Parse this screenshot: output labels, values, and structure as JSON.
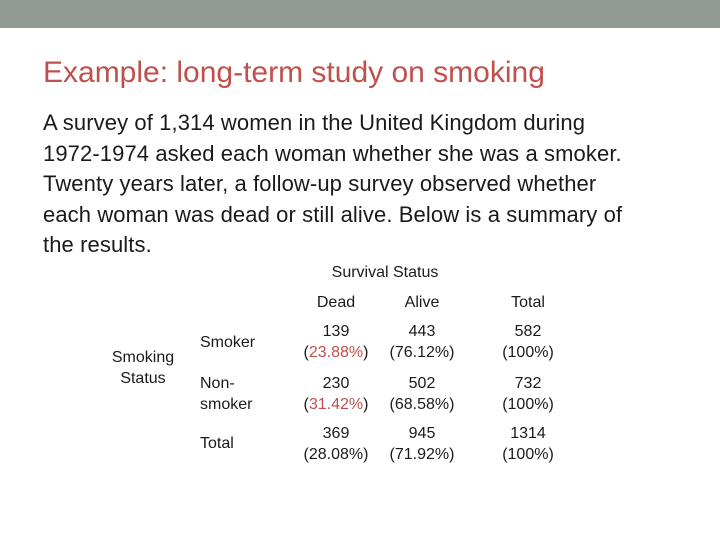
{
  "slide": {
    "title": "Example: long-term study on smoking",
    "body_lines": [
      "A survey of 1,314 women in the United Kingdom during",
      "1972-1974 asked each woman whether she was a smoker.",
      "Twenty years later, a follow-up survey observed whether",
      "each woman was dead or still alive. Below is a summary of",
      "the results."
    ]
  },
  "table": {
    "column_group_label": "Survival Status",
    "row_group_label_lines": [
      "Smoking",
      "Status"
    ],
    "columns": [
      "Dead",
      "Alive",
      "Total"
    ],
    "rows": [
      {
        "label_lines": [
          "Smoker"
        ],
        "cells": [
          [
            "139",
            "(23.88%)"
          ],
          [
            "443",
            "(76.12%)"
          ],
          [
            "582",
            "(100%)"
          ]
        ]
      },
      {
        "label_lines": [
          "Non-",
          "smoker"
        ],
        "cells": [
          [
            "230",
            "(31.42%)"
          ],
          [
            "502",
            "(68.58%)"
          ],
          [
            "732",
            "(100%)"
          ]
        ]
      },
      {
        "label_lines": [
          "Total"
        ],
        "cells": [
          [
            "369",
            "(28.08%)"
          ],
          [
            "945",
            "(71.92%)"
          ],
          [
            "1314",
            "(100%)"
          ]
        ]
      }
    ]
  },
  "colors": {
    "title": "#c0504d",
    "band": "#8e9a93",
    "highlight": "#c0504d"
  }
}
